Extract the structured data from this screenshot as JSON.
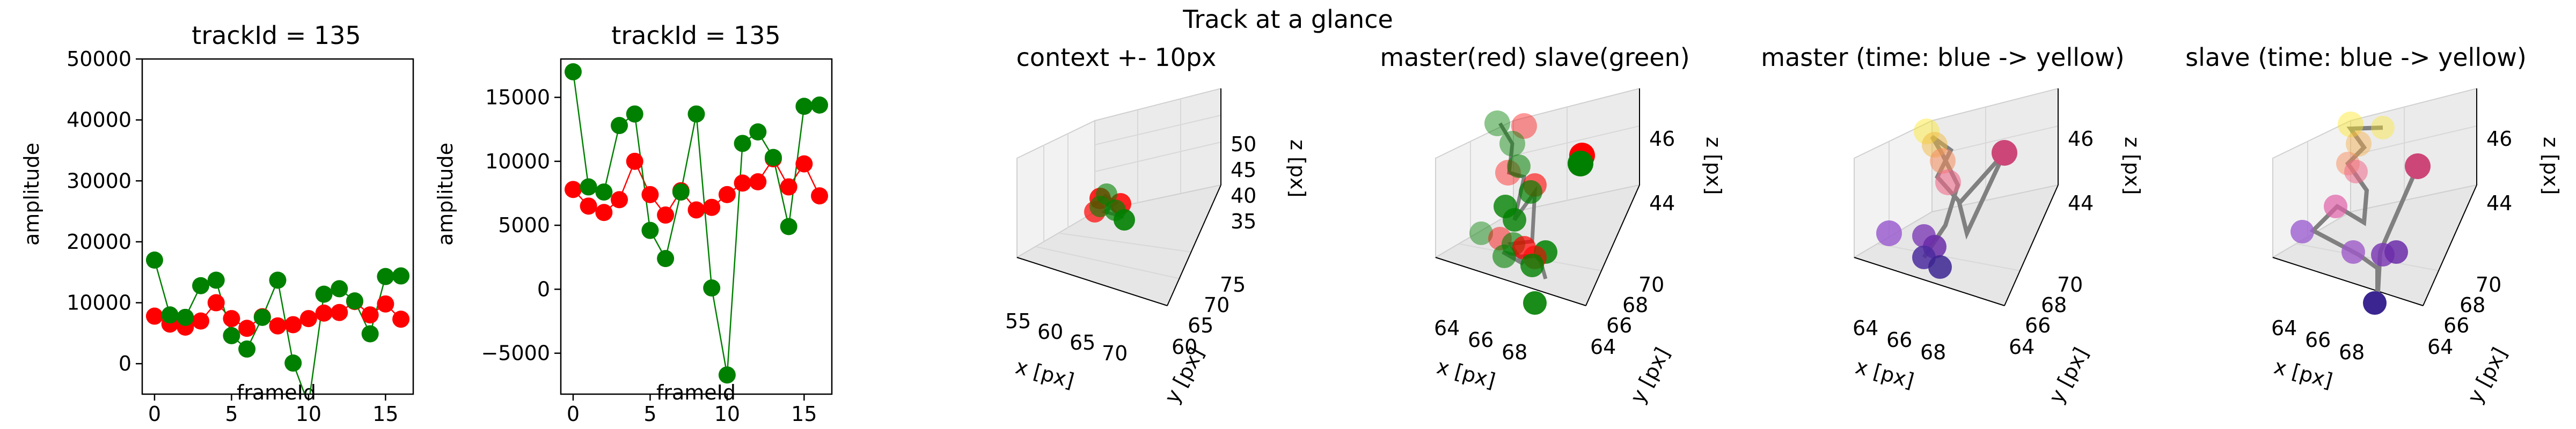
{
  "figure": {
    "suptitle": "Track at a glance"
  },
  "colors": {
    "master": "#ff0000",
    "slave": "#008000",
    "line": "#808080",
    "pane": "#f0f0f0",
    "axis": "#000000"
  },
  "chart_data": [
    {
      "type": "line",
      "title": "trackId = 135",
      "xlabel": "frameId",
      "ylabel": "amplitude",
      "xlim": [
        -0.8,
        16.8
      ],
      "ylim": [
        -5000,
        50000
      ],
      "xticks": [
        0,
        5,
        10,
        15
      ],
      "yticks": [
        0,
        10000,
        20000,
        30000,
        40000,
        50000
      ],
      "x": [
        0,
        1,
        2,
        3,
        4,
        5,
        6,
        7,
        8,
        9,
        10,
        11,
        12,
        13,
        14,
        15,
        16
      ],
      "series": [
        {
          "color": "#ff0000",
          "values": [
            7800,
            6500,
            6000,
            7000,
            10000,
            7400,
            5800,
            7700,
            6200,
            6400,
            7400,
            8300,
            8400,
            10200,
            8000,
            9800,
            7300
          ]
        },
        {
          "color": "#008000",
          "values": [
            17000,
            8000,
            7600,
            12800,
            13700,
            4600,
            2400,
            7600,
            13700,
            100,
            -6700,
            11400,
            12300,
            10300,
            4900,
            14300,
            14400
          ]
        }
      ]
    },
    {
      "type": "line",
      "title": "trackId = 135",
      "xlabel": "frameId",
      "ylabel": "amplitude",
      "xlim": [
        -0.8,
        16.8
      ],
      "ylim": [
        -8200,
        18000
      ],
      "xticks": [
        0,
        5,
        10,
        15
      ],
      "yticks": [
        -5000,
        0,
        5000,
        10000,
        15000
      ],
      "x": [
        0,
        1,
        2,
        3,
        4,
        5,
        6,
        7,
        8,
        9,
        10,
        11,
        12,
        13,
        14,
        15,
        16
      ],
      "series": [
        {
          "color": "#ff0000",
          "values": [
            7800,
            6500,
            6000,
            7000,
            10000,
            7400,
            5800,
            7700,
            6200,
            6400,
            7400,
            8300,
            8400,
            10200,
            8000,
            9800,
            7300
          ]
        },
        {
          "color": "#008000",
          "values": [
            17000,
            8000,
            7600,
            12800,
            13700,
            4600,
            2400,
            7600,
            13700,
            100,
            -6700,
            11400,
            12300,
            10300,
            4900,
            14300,
            14400
          ]
        }
      ]
    },
    {
      "type": "scatter",
      "title": "context +- 10px",
      "xlabel": "x [px]",
      "ylabel": "y [px]",
      "zlabel": "z [px]",
      "xticks": [
        "55",
        "60",
        "65",
        "70"
      ],
      "yticks": [
        "60",
        "65",
        "70",
        "75"
      ],
      "zticks": [
        "35",
        "40",
        "45",
        "50"
      ]
    },
    {
      "type": "scatter",
      "title": "master(red) slave(green)",
      "xlabel": "x [px]",
      "ylabel": "y [px]",
      "zlabel": "z [px]",
      "xticks": [
        "64",
        "66",
        "68"
      ],
      "yticks": [
        "64",
        "66",
        "68",
        "70"
      ],
      "zticks": [
        "44",
        "46"
      ]
    },
    {
      "type": "scatter",
      "title": "master (time: blue -> yellow)",
      "xlabel": "x [px]",
      "ylabel": "y [px]",
      "zlabel": "z [px]",
      "xticks": [
        "64",
        "66",
        "68"
      ],
      "yticks": [
        "64",
        "66",
        "68",
        "70"
      ],
      "zticks": [
        "44",
        "46"
      ]
    },
    {
      "type": "scatter",
      "title": "slave (time: blue -> yellow)",
      "xlabel": "x [px]",
      "ylabel": "y [px]",
      "zlabel": "z [px]",
      "xticks": [
        "64",
        "66",
        "68"
      ],
      "yticks": [
        "64",
        "66",
        "68",
        "70"
      ],
      "zticks": [
        "44",
        "46"
      ]
    }
  ]
}
